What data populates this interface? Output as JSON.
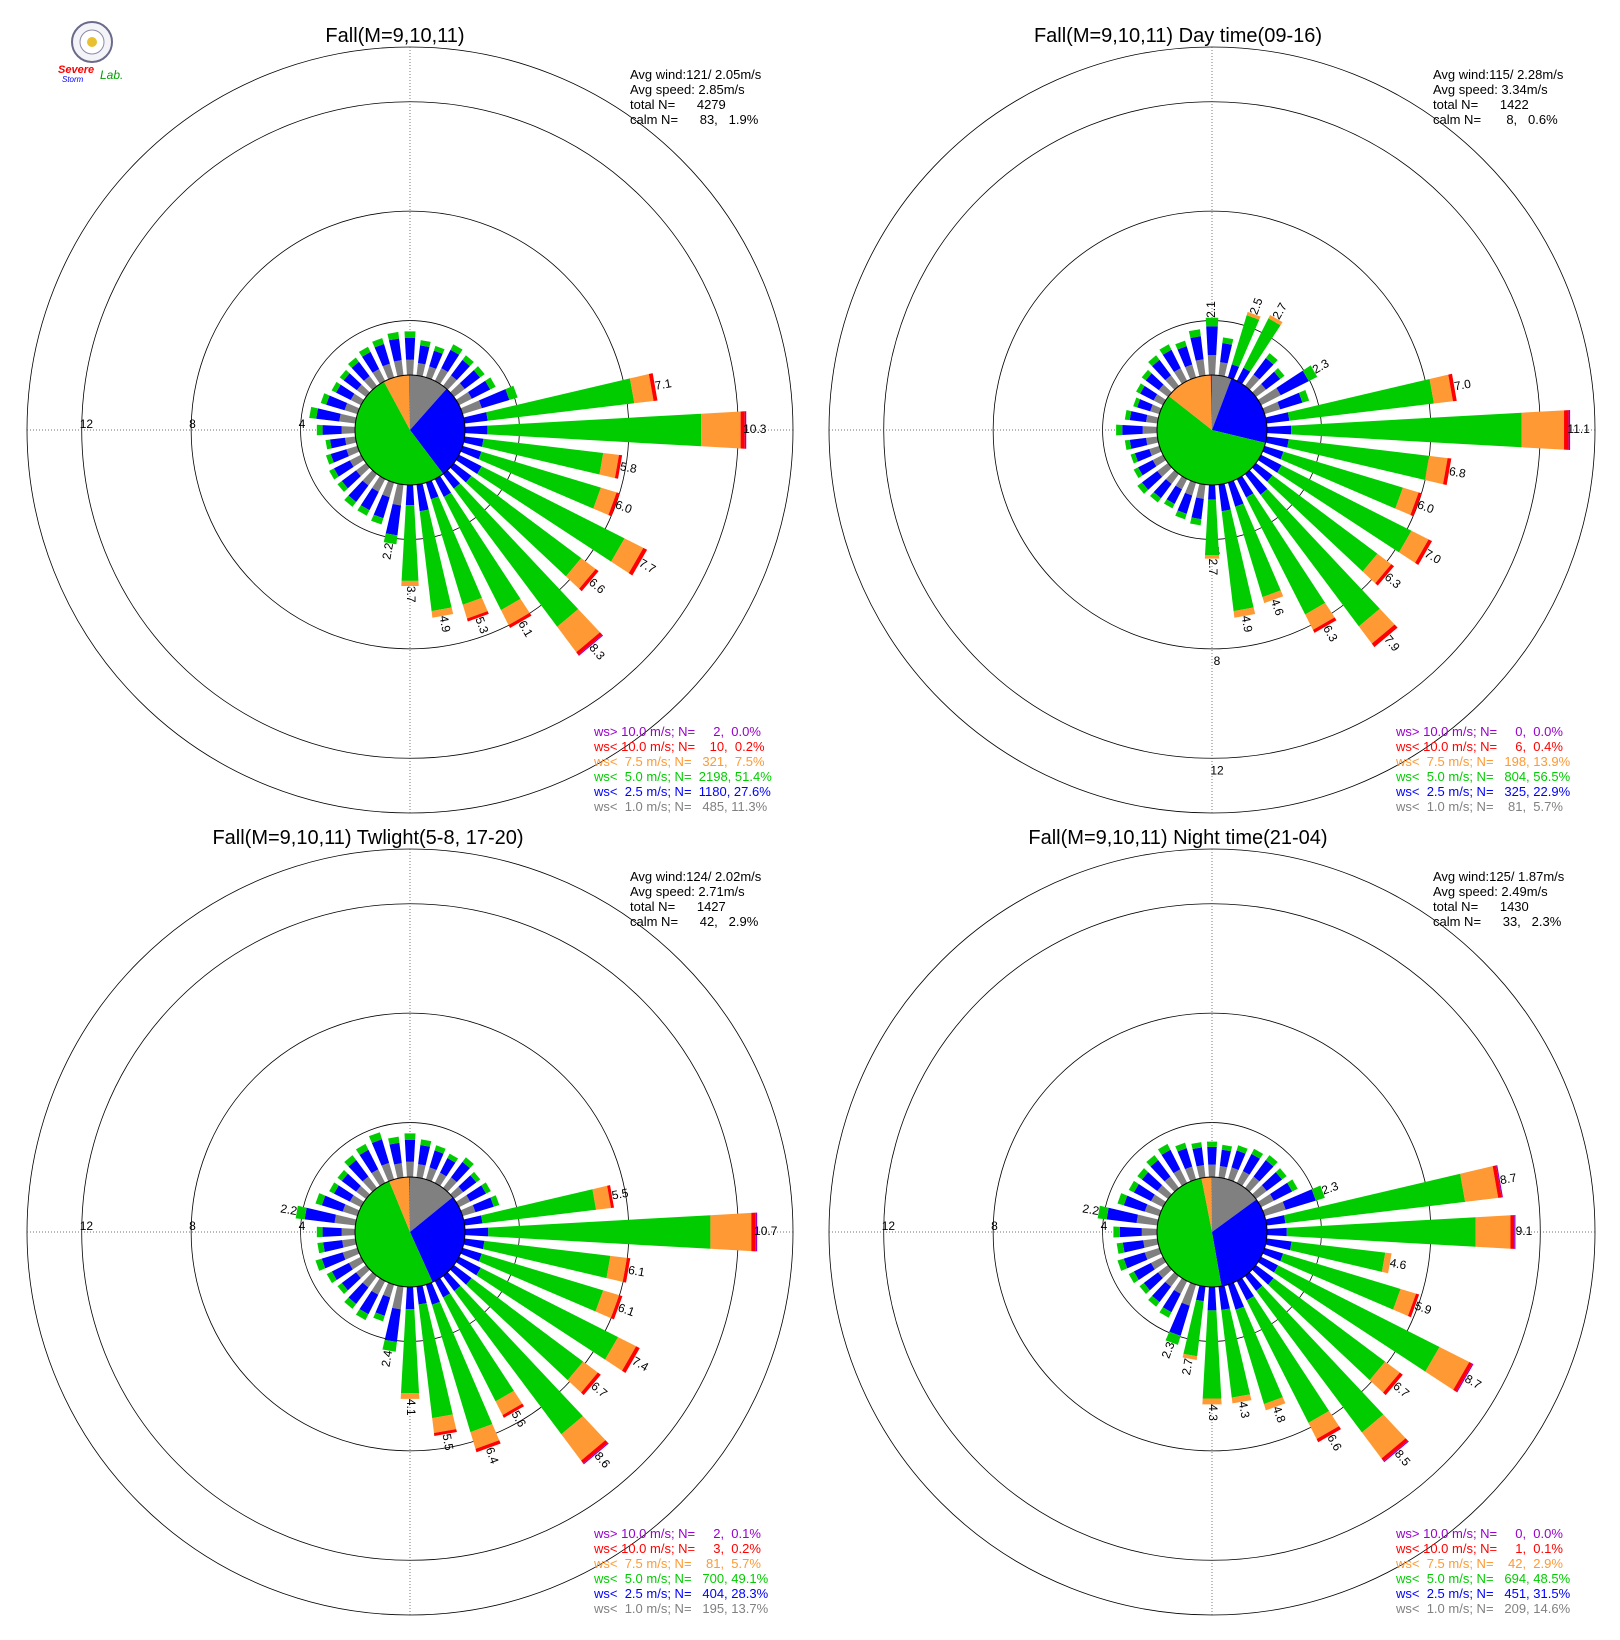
{
  "lab_logo": {
    "line1": "Severe",
    "line2": "Storm",
    "line3": "Lab.",
    "colors": [
      "#ff0000",
      "#0000ff",
      "#00a000"
    ]
  },
  "speed_bins": [
    {
      "key": "gray",
      "color": "#808080",
      "limit": 1.0
    },
    {
      "key": "blue",
      "color": "#0000ff",
      "limit": 2.5
    },
    {
      "key": "green",
      "color": "#00cc00",
      "limit": 5.0
    },
    {
      "key": "orange",
      "color": "#ff9933",
      "limit": 7.5
    },
    {
      "key": "red",
      "color": "#ff0000",
      "limit": 10.0
    },
    {
      "key": "purple",
      "color": "#9900cc",
      "limit": 10.0
    }
  ],
  "chart_data": [
    {
      "type": "wind-rose",
      "title": "Fall(M=9,10,11)",
      "stats": [
        "Avg wind:121/ 2.05m/s",
        "Avg speed: 2.85m/s",
        "total N=      4279",
        "calm N=      83,   1.9%"
      ],
      "ring_labels": [
        "12",
        "8",
        "4"
      ],
      "ring_values": [
        4,
        8,
        12
      ],
      "ring_label_direction": "west",
      "legend": [
        {
          "text": "ws> 10.0 m/s; N=     2,  0.0%",
          "color": "#9900cc"
        },
        {
          "text": "ws< 10.0 m/s; N=    10,  0.2%",
          "color": "#ff0000"
        },
        {
          "text": "ws<  7.5 m/s; N=   321,  7.5%",
          "color": "#ff9933"
        },
        {
          "text": "ws<  5.0 m/s; N=  2198, 51.4%",
          "color": "#00cc00"
        },
        {
          "text": "ws<  2.5 m/s; N=  1180, 27.6%",
          "color": "#0000ff"
        },
        {
          "text": "ws<  1.0 m/s; N=   485, 11.3%",
          "color": "#808080"
        }
      ],
      "pie_percent": [
        11.3,
        27.6,
        51.4,
        7.5,
        0.2,
        0.0
      ],
      "sector_directions_deg": [
        0,
        10,
        20,
        30,
        40,
        50,
        60,
        70,
        80,
        90,
        100,
        110,
        120,
        130,
        140,
        150,
        160,
        170,
        180,
        190,
        200,
        210,
        220,
        230,
        240,
        250,
        260,
        270,
        280,
        290,
        300,
        310,
        320,
        330,
        340,
        350
      ],
      "sector_totals": [
        1.6,
        1.3,
        1.2,
        1.5,
        1.4,
        1.4,
        1.5,
        2.1,
        7.1,
        10.3,
        5.8,
        6.0,
        7.7,
        6.6,
        8.3,
        6.1,
        5.3,
        4.9,
        3.7,
        2.2,
        1.6,
        1.5,
        1.5,
        1.3,
        1.3,
        1.2,
        1.1,
        1.4,
        1.7,
        1.4,
        1.2,
        1.2,
        1.3,
        1.4,
        1.5,
        1.6
      ],
      "labeled_sectors": [
        {
          "dir": 80,
          "label": "7.1"
        },
        {
          "dir": 90,
          "label": "10.3"
        },
        {
          "dir": 100,
          "label": "5.8"
        },
        {
          "dir": 110,
          "label": "6.0"
        },
        {
          "dir": 120,
          "label": "7.7"
        },
        {
          "dir": 130,
          "label": "6.6"
        },
        {
          "dir": 140,
          "label": "8.3"
        },
        {
          "dir": 150,
          "label": "6.1"
        },
        {
          "dir": 160,
          "label": "5.3"
        },
        {
          "dir": 170,
          "label": "4.9"
        },
        {
          "dir": 180,
          "label": "3.7"
        },
        {
          "dir": 190,
          "label": "2.2"
        }
      ]
    },
    {
      "type": "wind-rose",
      "title": "Fall(M=9,10,11) Day time(09-16)",
      "stats": [
        "Avg wind:115/ 2.28m/s",
        "Avg speed: 3.34m/s",
        "total N=      1422",
        "calm N=       8,   0.6%"
      ],
      "ring_labels": [
        "4",
        "8",
        "12"
      ],
      "ring_values": [
        4,
        8,
        12
      ],
      "ring_label_direction": "south",
      "legend": [
        {
          "text": "ws> 10.0 m/s; N=     0,  0.0%",
          "color": "#9900cc"
        },
        {
          "text": "ws< 10.0 m/s; N=     6,  0.4%",
          "color": "#ff0000"
        },
        {
          "text": "ws<  7.5 m/s; N=   198, 13.9%",
          "color": "#ff9933"
        },
        {
          "text": "ws<  5.0 m/s; N=   804, 56.5%",
          "color": "#00cc00"
        },
        {
          "text": "ws<  2.5 m/s; N=   325, 22.9%",
          "color": "#0000ff"
        },
        {
          "text": "ws<  1.0 m/s; N=    81,  5.7%",
          "color": "#808080"
        }
      ],
      "pie_percent": [
        5.7,
        22.9,
        56.5,
        13.9,
        0.4,
        0.0
      ],
      "sector_directions_deg": [
        0,
        10,
        20,
        30,
        40,
        50,
        60,
        70,
        80,
        90,
        100,
        110,
        120,
        130,
        140,
        150,
        160,
        170,
        180,
        190,
        200,
        210,
        220,
        230,
        240,
        250,
        260,
        270,
        280,
        290,
        300,
        310,
        320,
        330,
        340,
        350
      ],
      "sector_totals": [
        2.1,
        1.4,
        2.5,
        2.7,
        1.5,
        1.3,
        2.3,
        1.7,
        7.0,
        11.1,
        6.8,
        6.0,
        7.0,
        6.3,
        7.9,
        6.3,
        4.6,
        4.9,
        2.7,
        1.5,
        1.4,
        1.2,
        1.3,
        1.4,
        1.2,
        1.1,
        1.2,
        1.5,
        1.2,
        1.0,
        1.1,
        1.2,
        1.4,
        1.5,
        1.4,
        1.7
      ],
      "labeled_sectors": [
        {
          "dir": 0,
          "label": "2.1"
        },
        {
          "dir": 20,
          "label": "2.5"
        },
        {
          "dir": 30,
          "label": "2.7"
        },
        {
          "dir": 60,
          "label": "2.3"
        },
        {
          "dir": 80,
          "label": "7.0"
        },
        {
          "dir": 90,
          "label": "11.1"
        },
        {
          "dir": 100,
          "label": "6.8"
        },
        {
          "dir": 110,
          "label": "6.0"
        },
        {
          "dir": 120,
          "label": "7.0"
        },
        {
          "dir": 130,
          "label": "6.3"
        },
        {
          "dir": 140,
          "label": "7.9"
        },
        {
          "dir": 150,
          "label": "6.3"
        },
        {
          "dir": 160,
          "label": "4.6"
        },
        {
          "dir": 170,
          "label": "4.9"
        },
        {
          "dir": 180,
          "label": "2.7"
        }
      ]
    },
    {
      "type": "wind-rose",
      "title": "Fall(M=9,10,11) Twlight(5-8, 17-20)",
      "stats": [
        "Avg wind:124/ 2.02m/s",
        "Avg speed: 2.71m/s",
        "total N=      1427",
        "calm N=      42,   2.9%"
      ],
      "ring_labels": [
        "12",
        "8",
        "4"
      ],
      "ring_values": [
        4,
        8,
        12
      ],
      "ring_label_direction": "west",
      "legend": [
        {
          "text": "ws> 10.0 m/s; N=     2,  0.1%",
          "color": "#9900cc"
        },
        {
          "text": "ws< 10.0 m/s; N=     3,  0.2%",
          "color": "#ff0000"
        },
        {
          "text": "ws<  7.5 m/s; N=    81,  5.7%",
          "color": "#ff9933"
        },
        {
          "text": "ws<  5.0 m/s; N=   700, 49.1%",
          "color": "#00cc00"
        },
        {
          "text": "ws<  2.5 m/s; N=   404, 28.3%",
          "color": "#0000ff"
        },
        {
          "text": "ws<  1.0 m/s; N=   195, 13.7%",
          "color": "#808080"
        }
      ],
      "pie_percent": [
        13.7,
        28.3,
        49.1,
        5.7,
        0.2,
        0.1
      ],
      "sector_directions_deg": [
        0,
        10,
        20,
        30,
        40,
        50,
        60,
        70,
        80,
        90,
        100,
        110,
        120,
        130,
        140,
        150,
        160,
        170,
        180,
        190,
        200,
        210,
        220,
        230,
        240,
        250,
        260,
        270,
        280,
        290,
        300,
        310,
        320,
        330,
        340,
        350
      ],
      "sector_totals": [
        1.6,
        1.4,
        1.3,
        1.2,
        1.4,
        1.2,
        1.3,
        1.4,
        5.5,
        10.7,
        6.1,
        6.1,
        7.4,
        6.7,
        8.6,
        5.6,
        6.4,
        5.5,
        4.1,
        2.4,
        1.4,
        1.6,
        1.5,
        1.3,
        1.4,
        1.6,
        1.4,
        1.4,
        2.2,
        1.6,
        1.3,
        1.3,
        1.5,
        1.6,
        1.8,
        1.5
      ],
      "labeled_sectors": [
        {
          "dir": 80,
          "label": "5.5"
        },
        {
          "dir": 90,
          "label": "10.7"
        },
        {
          "dir": 100,
          "label": "6.1"
        },
        {
          "dir": 110,
          "label": "6.1"
        },
        {
          "dir": 120,
          "label": "7.4"
        },
        {
          "dir": 130,
          "label": "6.7"
        },
        {
          "dir": 140,
          "label": "8.6"
        },
        {
          "dir": 150,
          "label": "5.6"
        },
        {
          "dir": 160,
          "label": "6.4"
        },
        {
          "dir": 170,
          "label": "5.5"
        },
        {
          "dir": 180,
          "label": "4.1"
        },
        {
          "dir": 190,
          "label": "2.4"
        },
        {
          "dir": 280,
          "label": "2.2"
        }
      ]
    },
    {
      "type": "wind-rose",
      "title": "Fall(M=9,10,11) Night time(21-04)",
      "stats": [
        "Avg wind:125/ 1.87m/s",
        "Avg speed: 2.49m/s",
        "total N=      1430",
        "calm N=      33,   2.3%"
      ],
      "ring_labels": [
        "12",
        "8",
        "4"
      ],
      "ring_values": [
        4,
        8,
        12
      ],
      "ring_label_direction": "west",
      "legend": [
        {
          "text": "ws> 10.0 m/s; N=     0,  0.0%",
          "color": "#9900cc"
        },
        {
          "text": "ws< 10.0 m/s; N=     1,  0.1%",
          "color": "#ff0000"
        },
        {
          "text": "ws<  7.5 m/s; N=    42,  2.9%",
          "color": "#ff9933"
        },
        {
          "text": "ws<  5.0 m/s; N=   694, 48.5%",
          "color": "#00cc00"
        },
        {
          "text": "ws<  2.5 m/s; N=   451, 31.5%",
          "color": "#0000ff"
        },
        {
          "text": "ws<  1.0 m/s; N=   209, 14.6%",
          "color": "#808080"
        }
      ],
      "pie_percent": [
        14.6,
        31.5,
        48.5,
        2.9,
        0.1,
        0.0
      ],
      "sector_directions_deg": [
        0,
        10,
        20,
        30,
        40,
        50,
        60,
        70,
        80,
        90,
        100,
        110,
        120,
        130,
        140,
        150,
        160,
        170,
        180,
        190,
        200,
        210,
        220,
        230,
        240,
        250,
        260,
        270,
        280,
        290,
        300,
        310,
        320,
        330,
        340,
        350
      ],
      "sector_totals": [
        1.3,
        1.2,
        1.3,
        1.4,
        1.5,
        1.4,
        1.5,
        2.3,
        8.7,
        9.1,
        4.6,
        5.9,
        8.7,
        6.7,
        8.5,
        6.6,
        4.8,
        4.3,
        4.3,
        2.7,
        2.3,
        1.5,
        1.4,
        1.3,
        1.4,
        1.6,
        1.5,
        1.6,
        2.2,
        1.6,
        1.4,
        1.4,
        1.5,
        1.6,
        1.4,
        1.3
      ],
      "labeled_sectors": [
        {
          "dir": 70,
          "label": "2.3"
        },
        {
          "dir": 80,
          "label": "8.7"
        },
        {
          "dir": 90,
          "label": "9.1"
        },
        {
          "dir": 100,
          "label": "4.6"
        },
        {
          "dir": 110,
          "label": "5.9"
        },
        {
          "dir": 120,
          "label": "8.7"
        },
        {
          "dir": 130,
          "label": "6.7"
        },
        {
          "dir": 140,
          "label": "8.5"
        },
        {
          "dir": 150,
          "label": "6.6"
        },
        {
          "dir": 160,
          "label": "4.8"
        },
        {
          "dir": 170,
          "label": "4.3"
        },
        {
          "dir": 180,
          "label": "4.3"
        },
        {
          "dir": 190,
          "label": "2.7"
        },
        {
          "dir": 200,
          "label": "2.3"
        },
        {
          "dir": 280,
          "label": "2.2"
        }
      ]
    }
  ]
}
